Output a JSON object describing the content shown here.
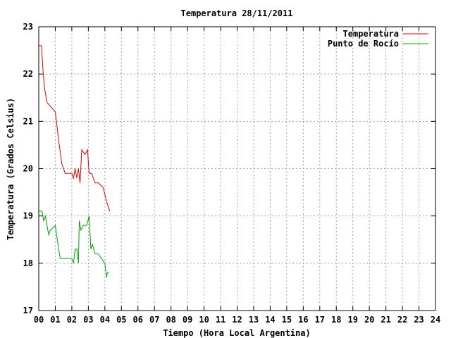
{
  "chart_data": {
    "type": "line",
    "title": "Temperatura 28/11/2011",
    "xlabel": "Tiempo (Hora Local Argentina)",
    "ylabel": "Temperatura (Grados Celsius)",
    "xlim": [
      0,
      24
    ],
    "ylim": [
      17,
      23
    ],
    "x_ticks": [
      "00",
      "01",
      "02",
      "03",
      "04",
      "05",
      "06",
      "07",
      "08",
      "09",
      "10",
      "11",
      "12",
      "13",
      "14",
      "15",
      "16",
      "17",
      "18",
      "19",
      "20",
      "21",
      "22",
      "23",
      "24"
    ],
    "y_ticks": [
      17,
      18,
      19,
      20,
      21,
      22,
      23
    ],
    "grid": true,
    "legend_position": "top-right",
    "series": [
      {
        "name": "Temperatura",
        "color": "#e00000",
        "x": [
          0.0,
          0.17,
          0.25,
          0.35,
          0.5,
          1.0,
          1.2,
          1.4,
          1.6,
          2.0,
          2.1,
          2.2,
          2.3,
          2.4,
          2.5,
          2.6,
          2.8,
          2.95,
          3.05,
          3.2,
          3.4,
          3.6,
          3.9,
          4.1,
          4.3
        ],
        "y": [
          22.6,
          22.6,
          22.1,
          21.7,
          21.4,
          21.2,
          20.6,
          20.1,
          19.9,
          19.9,
          19.8,
          20.0,
          19.8,
          20.0,
          19.7,
          20.4,
          20.3,
          20.4,
          19.9,
          19.9,
          19.7,
          19.7,
          19.6,
          19.3,
          19.1
        ]
      },
      {
        "name": "Punto de Rocío",
        "color": "#00a000",
        "x": [
          0.0,
          0.2,
          0.3,
          0.4,
          0.5,
          0.6,
          0.7,
          1.0,
          1.2,
          1.3,
          1.5,
          2.0,
          2.1,
          2.2,
          2.3,
          2.4,
          2.45,
          2.55,
          2.7,
          2.9,
          3.05,
          3.15,
          3.25,
          3.4,
          3.6,
          3.8,
          4.0,
          4.1,
          4.15,
          4.25
        ],
        "y": [
          19.1,
          19.1,
          18.9,
          19.0,
          18.8,
          18.6,
          18.7,
          18.8,
          18.3,
          18.1,
          18.1,
          18.1,
          18.0,
          18.3,
          18.3,
          18.0,
          18.9,
          18.7,
          18.8,
          18.8,
          19.0,
          18.3,
          18.4,
          18.2,
          18.2,
          18.1,
          18.0,
          17.7,
          17.8,
          17.8
        ]
      }
    ]
  }
}
